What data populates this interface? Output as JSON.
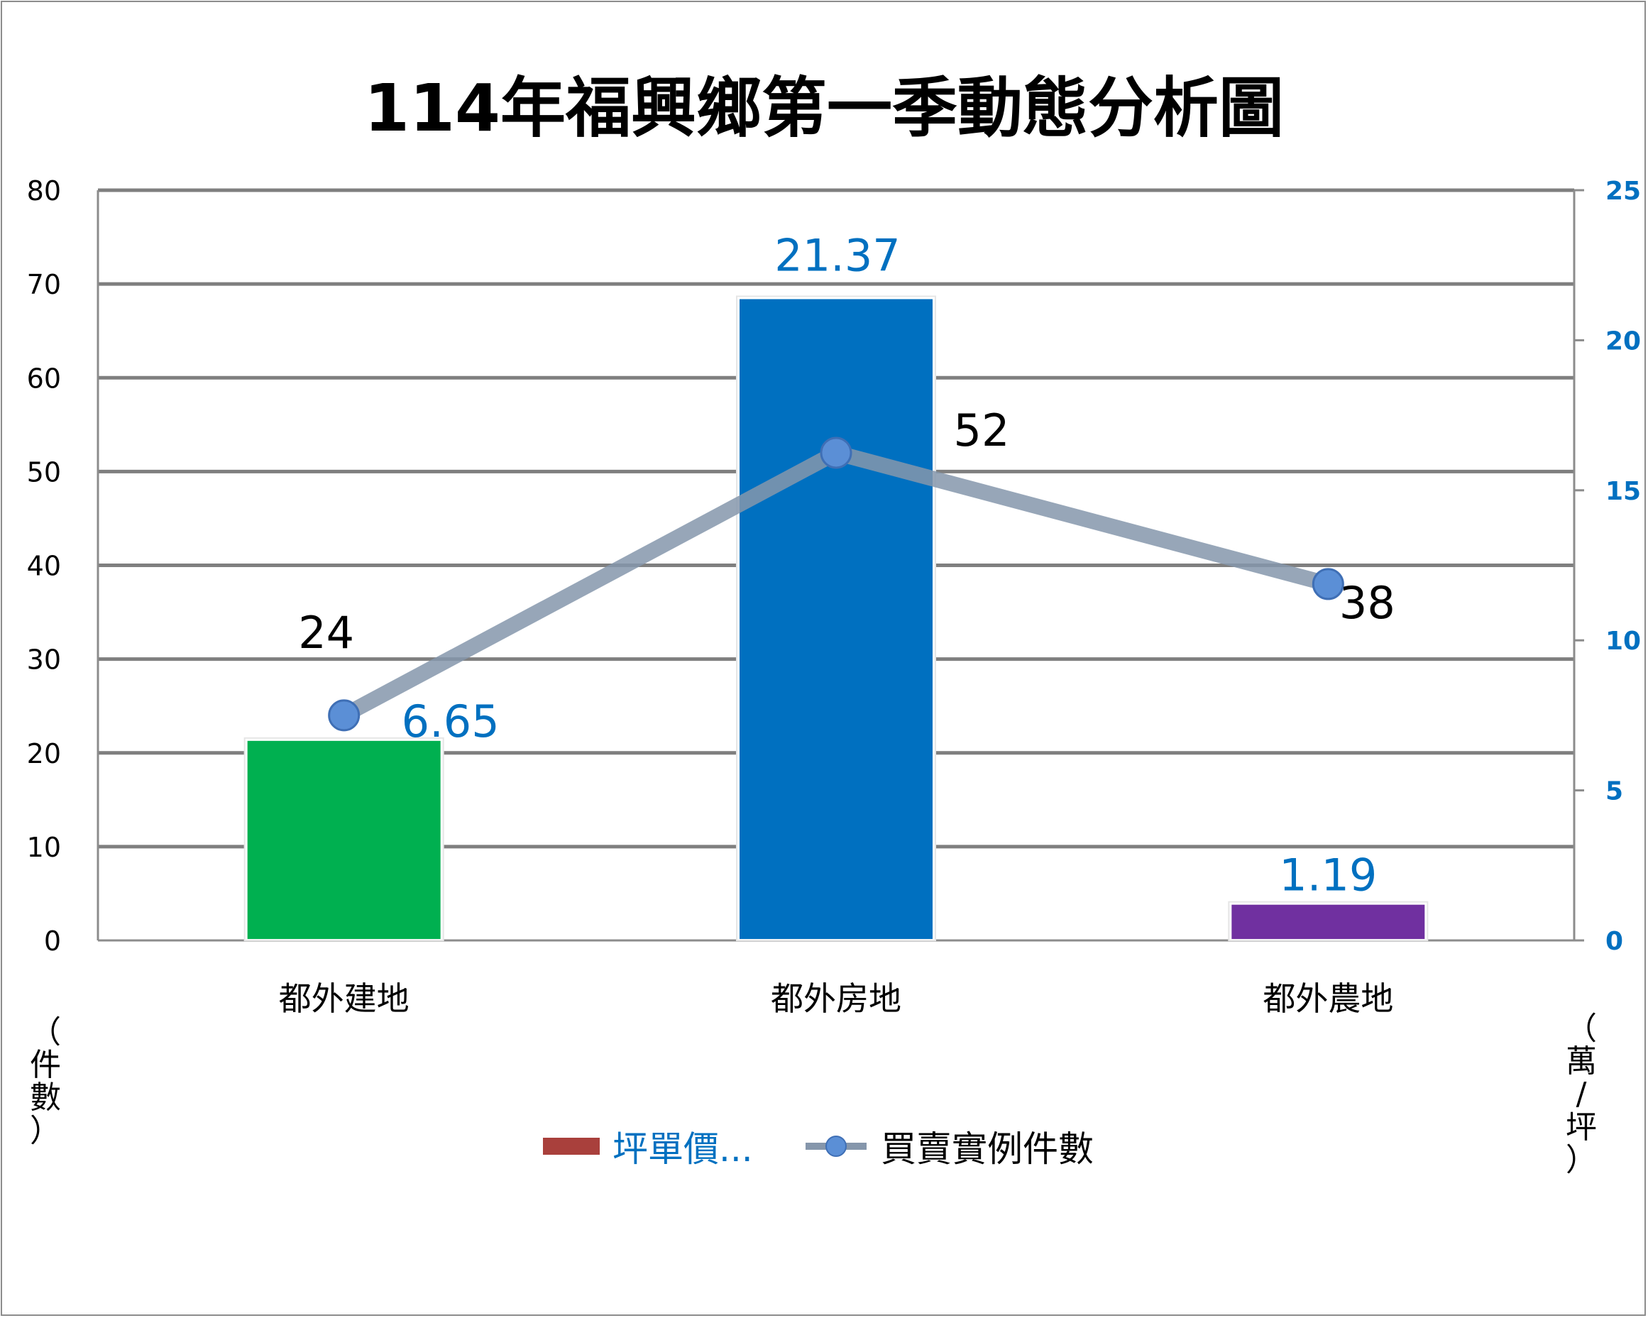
{
  "chart_data": {
    "type": "bar",
    "title": "114年福興鄉第一季動態分析圖",
    "categories": [
      "都外建地",
      "都外房地",
      "都外農地"
    ],
    "series": [
      {
        "name": "坪單價...",
        "kind": "bar",
        "axis": "right",
        "values": [
          6.65,
          21.37,
          1.19
        ],
        "value_labels": [
          "6.65",
          "21.37",
          "1.19"
        ],
        "colors": [
          "#00b050",
          "#0070c0",
          "#7030a0"
        ],
        "legend_color": "#a9403c"
      },
      {
        "name": "買賣實例件數",
        "kind": "line",
        "axis": "left",
        "values": [
          24,
          52,
          38
        ],
        "value_labels": [
          "24",
          "52",
          "38"
        ],
        "line_color": "#8596ab",
        "marker_color": "#5b8fd6"
      }
    ],
    "y_left": {
      "label": "（件數）",
      "label_chars": [
        "（",
        "件",
        "數",
        "）"
      ],
      "ylim": [
        0,
        80
      ],
      "ticks": [
        "0",
        "10",
        "20",
        "30",
        "40",
        "50",
        "60",
        "70",
        "80"
      ]
    },
    "y_right": {
      "label": "（萬/坪）",
      "label_chars": [
        "（",
        "萬",
        "/",
        "坪",
        "）"
      ],
      "ylim": [
        0,
        25
      ],
      "ticks": [
        "0",
        "5",
        "10",
        "15",
        "20",
        "25"
      ],
      "tick_color": "#0070c0"
    },
    "grid": true,
    "legend_position": "bottom",
    "gridline_color": "#7f7f7f"
  }
}
